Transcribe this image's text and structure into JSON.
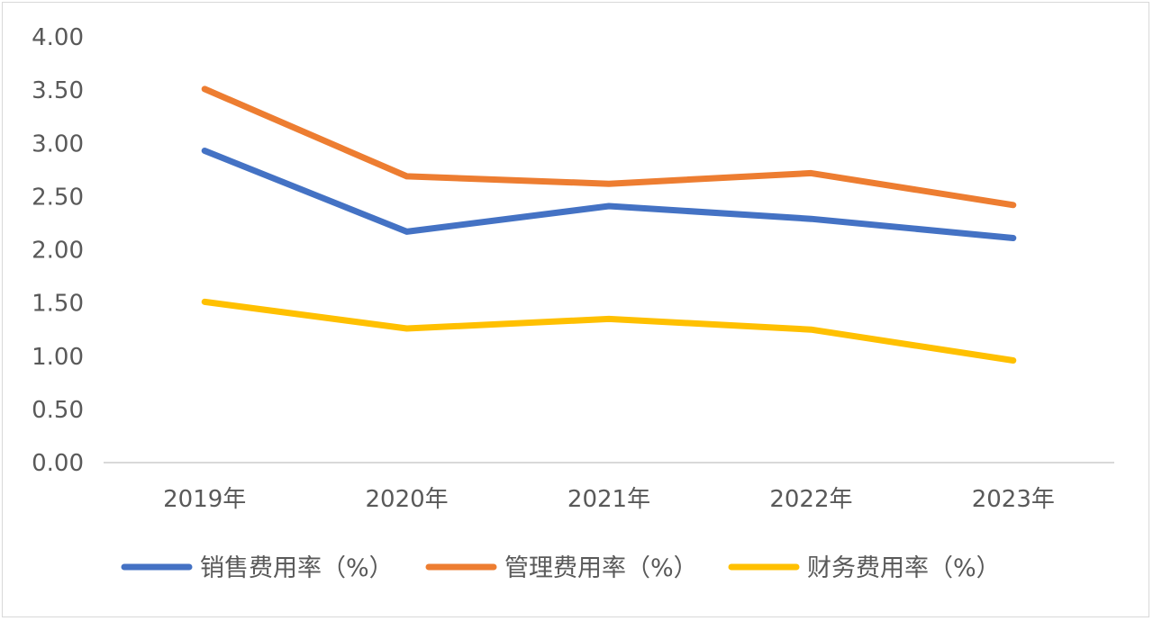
{
  "chart_data": {
    "type": "line",
    "categories": [
      "2019年",
      "2020年",
      "2021年",
      "2022年",
      "2023年"
    ],
    "y_ticks": [
      "0.00",
      "0.50",
      "1.00",
      "1.50",
      "2.00",
      "2.50",
      "3.00",
      "3.50",
      "4.00"
    ],
    "ylim": [
      0,
      4
    ],
    "grid": false,
    "legend_position": "bottom",
    "series": [
      {
        "name": "销售费用率（%）",
        "color": "#4472C4",
        "values": [
          2.93,
          2.17,
          2.41,
          2.29,
          2.11
        ]
      },
      {
        "name": "管理费用率（%）",
        "color": "#ED7D31",
        "values": [
          3.51,
          2.69,
          2.62,
          2.72,
          2.42
        ]
      },
      {
        "name": "财务费用率（%）",
        "color": "#FFC000",
        "values": [
          1.51,
          1.26,
          1.35,
          1.25,
          0.96
        ]
      }
    ]
  }
}
